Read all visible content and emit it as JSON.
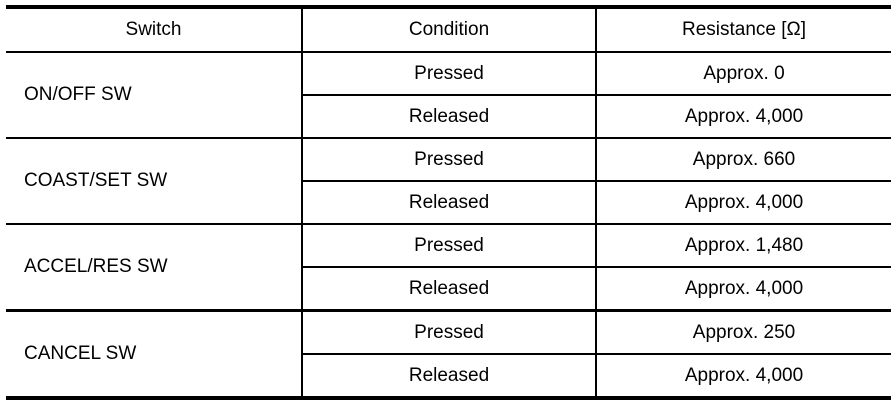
{
  "headers": {
    "switch": "Switch",
    "condition": "Condition",
    "resistance": "Resistance [Ω]"
  },
  "rows": [
    {
      "switch": "ON/OFF SW",
      "pressed": "Pressed",
      "pressed_value": "Approx. 0",
      "released": "Released",
      "released_value": "Approx. 4,000"
    },
    {
      "switch": "COAST/SET SW",
      "pressed": "Pressed",
      "pressed_value": "Approx. 660",
      "released": "Released",
      "released_value": "Approx. 4,000"
    },
    {
      "switch": "ACCEL/RES SW",
      "pressed": "Pressed",
      "pressed_value": "Approx. 1,480",
      "released": "Released",
      "released_value": "Approx. 4,000"
    },
    {
      "switch": "CANCEL SW",
      "pressed": "Pressed",
      "pressed_value": "Approx. 250",
      "released": "Released",
      "released_value": "Approx. 4,000"
    }
  ]
}
